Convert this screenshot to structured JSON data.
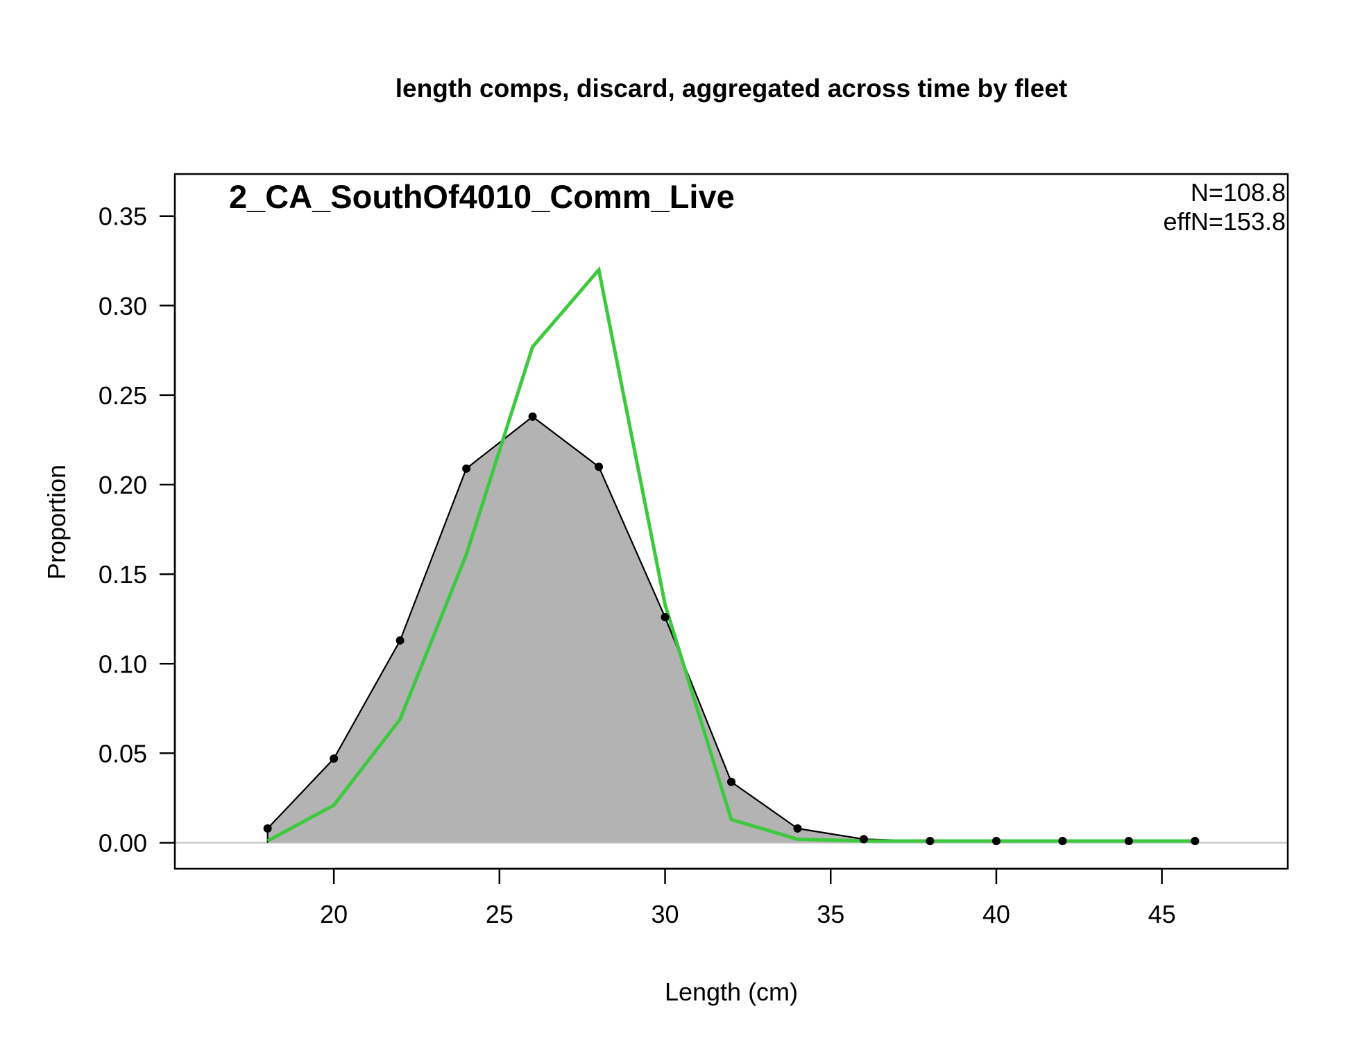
{
  "chart_data": {
    "type": "area",
    "title": "length comps, discard, aggregated across time by fleet",
    "panel_label": "2_CA_SouthOf4010_Comm_Live",
    "annotations": {
      "n": "N=108.8",
      "effn": "effN=153.8"
    },
    "xlabel": "Length (cm)",
    "ylabel": "Proportion",
    "xlim": [
      15.2,
      48.8
    ],
    "ylim": [
      -0.0145,
      0.3735
    ],
    "x_ticks": [
      20,
      25,
      30,
      35,
      40,
      45
    ],
    "y_ticks": [
      0.0,
      0.05,
      0.1,
      0.15,
      0.2,
      0.25,
      0.3,
      0.35
    ],
    "y_tick_labels": [
      "0.00",
      "0.05",
      "0.10",
      "0.15",
      "0.20",
      "0.25",
      "0.30",
      "0.35"
    ],
    "grid": false,
    "series": [
      {
        "role": "observed",
        "color": "#000000",
        "fill": "#b3b3b3",
        "x": [
          18,
          20,
          22,
          24,
          26,
          28,
          30,
          32,
          34,
          36,
          38,
          40,
          42,
          44,
          46
        ],
        "values": [
          0.008,
          0.047,
          0.113,
          0.209,
          0.238,
          0.21,
          0.126,
          0.034,
          0.008,
          0.002,
          0.001,
          0.001,
          0.001,
          0.001,
          0.001
        ]
      },
      {
        "role": "expected",
        "color": "#3dc93d",
        "x": [
          18,
          20,
          22,
          24,
          26,
          28,
          30,
          32,
          34,
          36,
          38,
          40,
          42,
          44,
          46
        ],
        "values": [
          0.001,
          0.021,
          0.069,
          0.161,
          0.277,
          0.32,
          0.133,
          0.013,
          0.002,
          0.001,
          0.001,
          0.001,
          0.001,
          0.001,
          0.001
        ]
      }
    ]
  }
}
